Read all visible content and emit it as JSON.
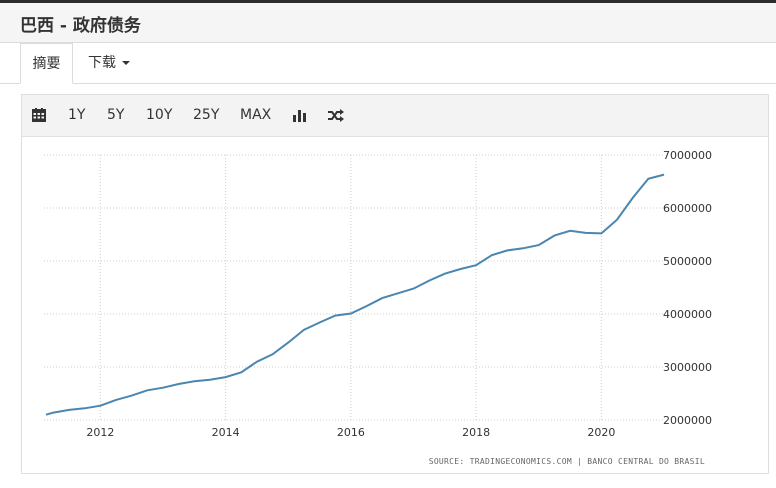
{
  "header": {
    "title": "巴西 - 政府债务"
  },
  "tabs": {
    "summary_label": "摘要",
    "download_label": "下载"
  },
  "toolbar": {
    "calendar_icon": "calendar-icon",
    "ranges": [
      "1Y",
      "5Y",
      "10Y",
      "25Y",
      "MAX"
    ],
    "bar_chart_icon": "bar-chart-icon",
    "shuffle_icon": "shuffle-icon"
  },
  "chart_data": {
    "type": "line",
    "title": "",
    "xlabel": "",
    "ylabel": "",
    "xlim": [
      2011.1,
      2021.0
    ],
    "ylim": [
      1800000,
      7000000
    ],
    "x_ticks": [
      2012,
      2014,
      2016,
      2018,
      2020
    ],
    "x_tick_labels": [
      "2012",
      "2014",
      "2016",
      "2018",
      "2020"
    ],
    "y_ticks": [
      2000000,
      3000000,
      4000000,
      5000000,
      6000000,
      7000000
    ],
    "y_tick_labels": [
      "2000000",
      "3000000",
      "4000000",
      "5000000",
      "6000000",
      "7000000"
    ],
    "grid": true,
    "line_color": "#4a86b0",
    "source_text": "SOURCE: TRADINGECONOMICS.COM | BANCO CENTRAL DO BRASIL",
    "series": [
      {
        "name": "",
        "x": [
          2011.0,
          2011.25,
          2011.5,
          2011.75,
          2012.0,
          2012.25,
          2012.5,
          2012.75,
          2013.0,
          2013.25,
          2013.5,
          2013.75,
          2014.0,
          2014.25,
          2014.5,
          2014.75,
          2015.0,
          2015.25,
          2015.5,
          2015.75,
          2016.0,
          2016.25,
          2016.5,
          2016.75,
          2017.0,
          2017.25,
          2017.5,
          2017.75,
          2018.0,
          2018.25,
          2018.5,
          2018.75,
          2019.0,
          2019.25,
          2019.5,
          2019.75,
          2020.0,
          2020.25,
          2020.5,
          2020.75,
          2021.0
        ],
        "values": [
          2100000,
          2140000,
          2190000,
          2220000,
          2270000,
          2380000,
          2460000,
          2560000,
          2610000,
          2680000,
          2730000,
          2760000,
          2810000,
          2900000,
          3100000,
          3240000,
          3460000,
          3700000,
          3840000,
          3970000,
          4010000,
          4150000,
          4300000,
          4390000,
          4480000,
          4630000,
          4760000,
          4850000,
          4920000,
          5110000,
          5200000,
          5240000,
          5300000,
          5480000,
          5570000,
          5530000,
          5520000,
          5780000,
          6190000,
          6550000,
          6630000
        ]
      }
    ]
  }
}
